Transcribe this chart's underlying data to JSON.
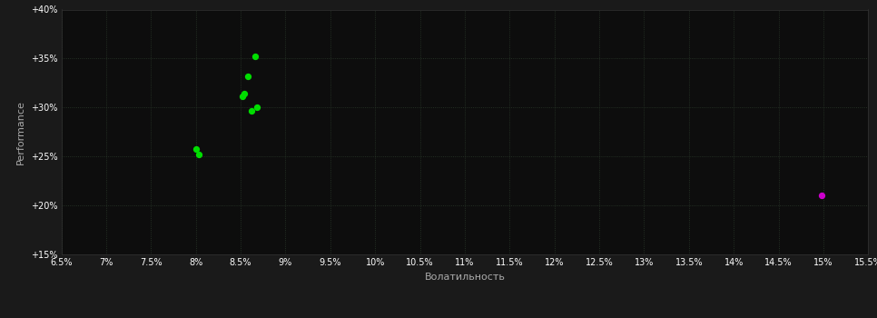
{
  "background_color": "#1a1a1a",
  "plot_bg_color": "#0d0d0d",
  "grid_color": "#2a3a2a",
  "text_color": "#ffffff",
  "axis_label_color": "#aaaaaa",
  "xlabel": "Волатильность",
  "ylabel": "Performance",
  "xlim": [
    0.065,
    0.155
  ],
  "ylim": [
    0.15,
    0.4
  ],
  "xticks": [
    0.065,
    0.07,
    0.075,
    0.08,
    0.085,
    0.09,
    0.095,
    0.1,
    0.105,
    0.11,
    0.115,
    0.12,
    0.125,
    0.13,
    0.135,
    0.14,
    0.145,
    0.15,
    0.155
  ],
  "yticks": [
    0.15,
    0.2,
    0.25,
    0.3,
    0.35,
    0.4
  ],
  "green_points": [
    [
      0.0866,
      0.352
    ],
    [
      0.0858,
      0.332
    ],
    [
      0.0854,
      0.314
    ],
    [
      0.0852,
      0.311
    ],
    [
      0.0868,
      0.3
    ],
    [
      0.0862,
      0.297
    ],
    [
      0.08,
      0.258
    ],
    [
      0.0803,
      0.252
    ]
  ],
  "magenta_points": [
    [
      0.1498,
      0.21
    ]
  ],
  "green_color": "#00dd00",
  "magenta_color": "#cc00cc",
  "point_size": 18,
  "figsize": [
    9.66,
    3.5
  ],
  "dpi": 100
}
